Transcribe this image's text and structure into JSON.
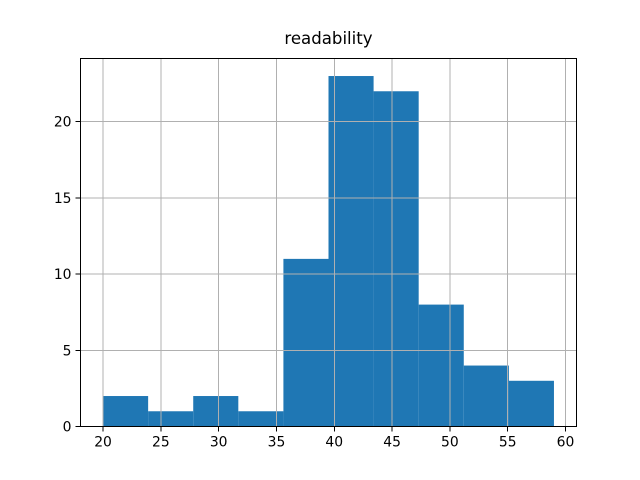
{
  "chart_data": {
    "type": "bar",
    "subtype": "histogram",
    "title": "readability",
    "xlabel": "",
    "ylabel": "",
    "bin_edges": [
      20.0,
      23.9,
      27.8,
      31.7,
      35.6,
      39.5,
      43.4,
      47.3,
      51.2,
      55.1,
      59.0
    ],
    "values": [
      2,
      1,
      2,
      1,
      11,
      23,
      22,
      8,
      4,
      3
    ],
    "xticks": [
      20,
      25,
      30,
      35,
      40,
      45,
      50,
      55,
      60
    ],
    "yticks": [
      0,
      5,
      10,
      15,
      20
    ],
    "xlim": [
      18.05,
      60.95
    ],
    "ylim": [
      0,
      24.15
    ],
    "grid": true,
    "grid_over_bars": true,
    "legend": false,
    "colors": {
      "bar": "#1f77b4",
      "grid": "#b0b0b0",
      "spine": "#000000",
      "text": "#000000",
      "background": "#ffffff"
    }
  }
}
